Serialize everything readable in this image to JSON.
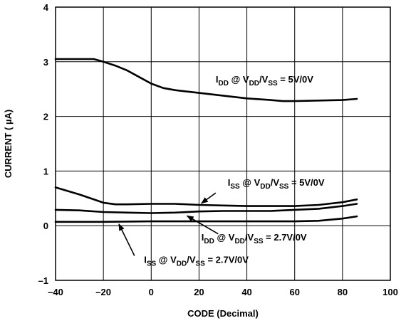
{
  "chart_data": {
    "type": "line",
    "title": "",
    "xlabel": "CODE (Decimal)",
    "ylabel": "CURRENT ( µA)",
    "xlim": [
      -40,
      100
    ],
    "ylim": [
      -1,
      4
    ],
    "xticks": [
      -40,
      -20,
      0,
      20,
      40,
      60,
      80,
      100
    ],
    "yticks": [
      -1,
      0,
      1,
      2,
      3,
      4
    ],
    "xtick_labels": [
      "–40",
      "–20",
      "0",
      "20",
      "40",
      "60",
      "80",
      "100"
    ],
    "ytick_labels": [
      "–1",
      "0",
      "1",
      "2",
      "3",
      "4"
    ],
    "grid": true,
    "series": [
      {
        "name": "IDD @ VDD/VSS = 5V/0V",
        "x": [
          -40,
          -24,
          -20,
          -15,
          -10,
          -5,
          0,
          5,
          10,
          20,
          30,
          40,
          50,
          55,
          60,
          70,
          80,
          86
        ],
        "y": [
          3.05,
          3.05,
          3.0,
          2.93,
          2.84,
          2.72,
          2.6,
          2.52,
          2.48,
          2.43,
          2.38,
          2.33,
          2.3,
          2.28,
          2.28,
          2.29,
          2.3,
          2.32
        ]
      },
      {
        "name": "ISS @ VDD/VSS = 5V/0V",
        "x": [
          -40,
          -30,
          -20,
          -15,
          -10,
          0,
          10,
          20,
          30,
          40,
          50,
          60,
          70,
          80,
          86
        ],
        "y": [
          0.7,
          0.57,
          0.42,
          0.39,
          0.39,
          0.4,
          0.4,
          0.38,
          0.37,
          0.36,
          0.36,
          0.36,
          0.38,
          0.43,
          0.48
        ]
      },
      {
        "name": "IDD @ VDD/VSS = 2.7V/0V",
        "x": [
          -40,
          -30,
          -20,
          -10,
          0,
          10,
          20,
          30,
          40,
          50,
          60,
          70,
          80,
          86
        ],
        "y": [
          0.29,
          0.28,
          0.25,
          0.24,
          0.23,
          0.24,
          0.26,
          0.27,
          0.27,
          0.27,
          0.29,
          0.31,
          0.36,
          0.4
        ]
      },
      {
        "name": "ISS @ VDD/VSS = 2.7V/0V",
        "x": [
          -40,
          -20,
          0,
          20,
          40,
          60,
          70,
          80,
          86
        ],
        "y": [
          0.07,
          0.07,
          0.08,
          0.08,
          0.08,
          0.08,
          0.09,
          0.13,
          0.17
        ]
      }
    ],
    "annotations": [
      {
        "series": "IDD @ VDD/VSS = 5V/0V",
        "at": [
          27,
          2.62
        ],
        "parts": [
          {
            "text": "I",
            "sub": false
          },
          {
            "text": "DD",
            "sub": true
          },
          {
            "text": " @ V",
            "sub": false
          },
          {
            "text": "DD",
            "sub": true
          },
          {
            "text": "/V",
            "sub": false
          },
          {
            "text": "SS",
            "sub": true
          },
          {
            "text": " = 5V/0V",
            "sub": false
          }
        ]
      },
      {
        "series": "ISS @ VDD/VSS = 5V/0V",
        "at": [
          32,
          0.73
        ],
        "parts": [
          {
            "text": "I",
            "sub": false
          },
          {
            "text": "SS",
            "sub": true
          },
          {
            "text": " @ V",
            "sub": false
          },
          {
            "text": "DD",
            "sub": true
          },
          {
            "text": "/V",
            "sub": false
          },
          {
            "text": "SS",
            "sub": true
          },
          {
            "text": " = 5V/0V",
            "sub": false
          }
        ],
        "arrow_from": [
          27,
          0.6
        ],
        "arrow_to": [
          21,
          0.41
        ]
      },
      {
        "series": "IDD @ VDD/VSS = 2.7V/0V",
        "at": [
          21,
          -0.27
        ],
        "parts": [
          {
            "text": "I",
            "sub": false
          },
          {
            "text": "DD",
            "sub": true
          },
          {
            "text": " @ V",
            "sub": false
          },
          {
            "text": "DD",
            "sub": true
          },
          {
            "text": "/V",
            "sub": false
          },
          {
            "text": "SS",
            "sub": true
          },
          {
            "text": " = 2.7V/0V",
            "sub": false
          }
        ],
        "arrow_from": [
          28,
          -0.15
        ],
        "arrow_to": [
          15,
          0.18
        ]
      },
      {
        "series": "ISS @ VDD/VSS = 2.7V/0V",
        "at": [
          -3,
          -0.68
        ],
        "parts": [
          {
            "text": "I",
            "sub": false
          },
          {
            "text": "SS",
            "sub": true
          },
          {
            "text": " @ V",
            "sub": false
          },
          {
            "text": "DD",
            "sub": true
          },
          {
            "text": "/V",
            "sub": false
          },
          {
            "text": "SS",
            "sub": true
          },
          {
            "text": " = 2.7V/0V",
            "sub": false
          }
        ],
        "arrow_from": [
          -7,
          -0.55
        ],
        "arrow_to": [
          -13.5,
          0.03
        ]
      }
    ]
  }
}
